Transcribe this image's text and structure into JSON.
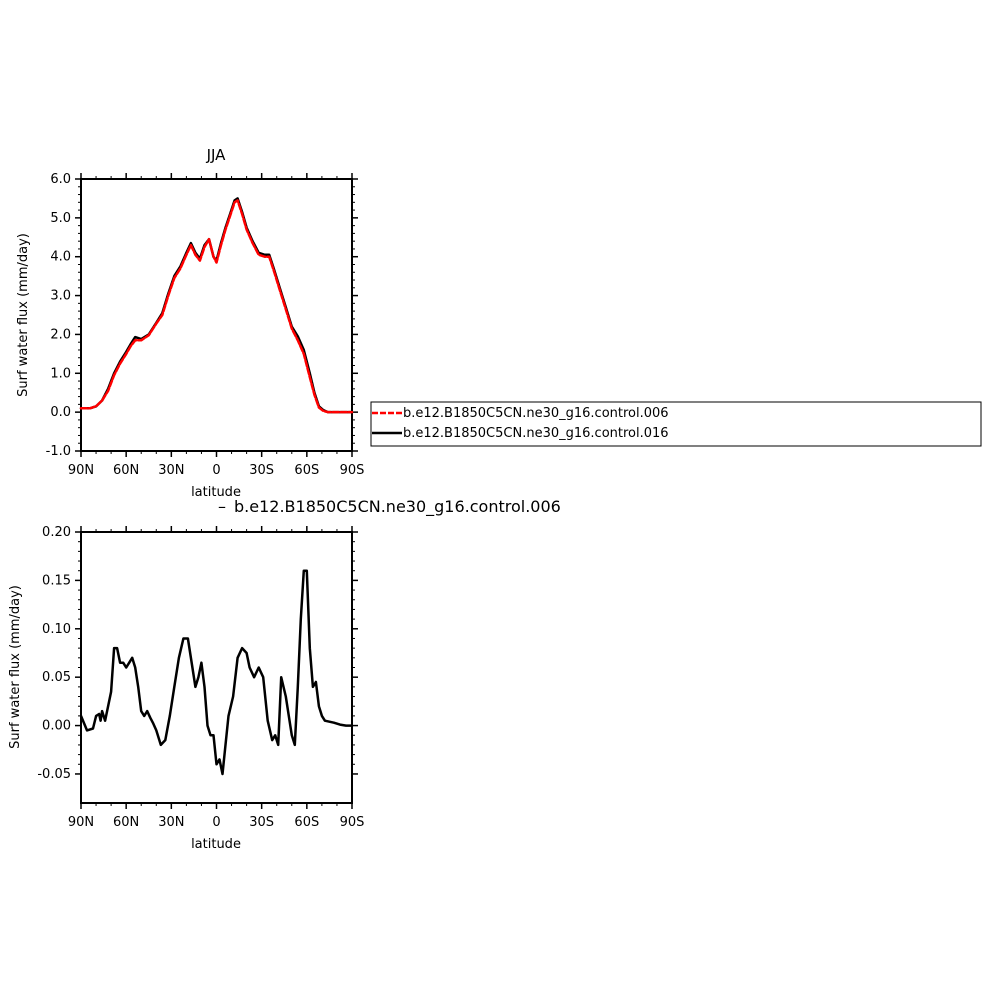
{
  "chart_data": [
    {
      "type": "line",
      "title": "JJA",
      "xlabel": "latitude",
      "ylabel": "Surf water flux (mm/day)",
      "xlim": [
        90,
        -90
      ],
      "ylim": [
        -1.0,
        6.0
      ],
      "x_tick_values": [
        90,
        60,
        30,
        0,
        -30,
        -60,
        -90
      ],
      "x_tick_labels": [
        "90N",
        "60N",
        "30N",
        "0",
        "30S",
        "60S",
        "90S"
      ],
      "y_tick_values": [
        -1,
        0,
        1,
        2,
        3,
        4,
        5,
        6
      ],
      "y_tick_labels": [
        "-1.0",
        "0.0",
        "1.0",
        "2.0",
        "3.0",
        "4.0",
        "5.0",
        "6.0"
      ],
      "grid": false,
      "legend_placement": "right",
      "colors": {
        "run006": "#ff0000",
        "run016": "#000000"
      },
      "series": [
        {
          "name": "b.e12.B1850C5CN.ne30_g16.control.016",
          "x": [
            90,
            84,
            80,
            76,
            72,
            68,
            64,
            60,
            57,
            54,
            50,
            45,
            40,
            36,
            32,
            28,
            24,
            20,
            17,
            14,
            11,
            8,
            5,
            2,
            0,
            -3,
            -6,
            -9,
            -12,
            -14,
            -17,
            -20,
            -24,
            -28,
            -32,
            -35,
            -38,
            -42,
            -46,
            -50,
            -54,
            -58,
            -62,
            -65,
            -68,
            -71,
            -74,
            -80,
            -85,
            -90
          ],
          "y": [
            0.1,
            0.1,
            0.15,
            0.3,
            0.6,
            1.0,
            1.3,
            1.55,
            1.75,
            1.93,
            1.88,
            2.0,
            2.3,
            2.55,
            3.05,
            3.5,
            3.75,
            4.1,
            4.35,
            4.1,
            3.95,
            4.3,
            4.45,
            4.0,
            3.9,
            4.35,
            4.75,
            5.1,
            5.45,
            5.5,
            5.15,
            4.75,
            4.4,
            4.1,
            4.05,
            4.05,
            3.7,
            3.2,
            2.7,
            2.2,
            1.95,
            1.6,
            1.0,
            0.5,
            0.15,
            0.05,
            0.0,
            0.0,
            0.0,
            0.0
          ]
        },
        {
          "name": "b.e12.B1850C5CN.ne30_g16.control.006",
          "x": [
            90,
            84,
            80,
            76,
            72,
            68,
            64,
            60,
            57,
            54,
            50,
            45,
            40,
            36,
            32,
            28,
            24,
            20,
            17,
            14,
            11,
            8,
            5,
            2,
            0,
            -3,
            -6,
            -9,
            -12,
            -14,
            -17,
            -20,
            -24,
            -28,
            -32,
            -35,
            -38,
            -42,
            -46,
            -50,
            -54,
            -58,
            -62,
            -65,
            -68,
            -71,
            -74,
            -80,
            -85,
            -90
          ],
          "y": [
            0.1,
            0.1,
            0.15,
            0.3,
            0.55,
            0.95,
            1.25,
            1.5,
            1.7,
            1.85,
            1.85,
            1.98,
            2.28,
            2.5,
            3.0,
            3.45,
            3.7,
            4.05,
            4.3,
            4.05,
            3.9,
            4.25,
            4.45,
            4.0,
            3.85,
            4.3,
            4.7,
            5.05,
            5.4,
            5.45,
            5.1,
            4.7,
            4.35,
            4.05,
            4.0,
            4.0,
            3.65,
            3.15,
            2.65,
            2.15,
            1.85,
            1.5,
            0.9,
            0.45,
            0.12,
            0.03,
            0.0,
            0.0,
            0.0,
            0.0
          ]
        }
      ]
    },
    {
      "type": "line",
      "title": "",
      "subtitle": "b.e12.B1850C5CN.ne30_g16.control.006",
      "xlabel": "latitude",
      "ylabel": "Surf water flux (mm/day)",
      "xlim": [
        90,
        -90
      ],
      "ylim": [
        -0.08,
        0.2
      ],
      "x_tick_values": [
        90,
        60,
        30,
        0,
        -30,
        -60,
        -90
      ],
      "x_tick_labels": [
        "90N",
        "60N",
        "30N",
        "0",
        "30S",
        "60S",
        "90S"
      ],
      "y_tick_values": [
        -0.05,
        0.0,
        0.05,
        0.1,
        0.15,
        0.2
      ],
      "y_tick_labels": [
        "-0.05",
        "0.00",
        "0.05",
        "0.10",
        "0.15",
        "0.20"
      ],
      "grid": false,
      "colors": {
        "line": "#000000"
      },
      "series": [
        {
          "name": "",
          "x": [
            90,
            86,
            82,
            80,
            78,
            77,
            76,
            74,
            72,
            70,
            68,
            66,
            64,
            62,
            60,
            58,
            56,
            54,
            52,
            50,
            48,
            46,
            44,
            42,
            40,
            37,
            34,
            31,
            28,
            25,
            22,
            19,
            16,
            14,
            12,
            10,
            8,
            6,
            4,
            2,
            0,
            -2,
            -4,
            -6,
            -8,
            -11,
            -14,
            -17,
            -20,
            -22,
            -25,
            -28,
            -31,
            -34,
            -37,
            -39,
            -41,
            -43,
            -46,
            -48,
            -50,
            -52,
            -54,
            -56,
            -58,
            -60,
            -62,
            -64,
            -66,
            -68,
            -70,
            -72,
            -75,
            -78,
            -82,
            -86,
            -90
          ],
          "y": [
            0.01,
            -0.005,
            -0.003,
            0.01,
            0.012,
            0.005,
            0.015,
            0.005,
            0.02,
            0.035,
            0.08,
            0.08,
            0.065,
            0.065,
            0.06,
            0.065,
            0.07,
            0.06,
            0.04,
            0.015,
            0.01,
            0.015,
            0.008,
            0.002,
            -0.005,
            -0.02,
            -0.015,
            0.01,
            0.04,
            0.07,
            0.09,
            0.09,
            0.06,
            0.04,
            0.05,
            0.065,
            0.04,
            0.0,
            -0.01,
            -0.01,
            -0.04,
            -0.035,
            -0.05,
            -0.02,
            0.01,
            0.03,
            0.07,
            0.08,
            0.075,
            0.06,
            0.05,
            0.06,
            0.05,
            0.005,
            -0.015,
            -0.01,
            -0.02,
            0.05,
            0.03,
            0.01,
            -0.01,
            -0.02,
            0.04,
            0.11,
            0.16,
            0.16,
            0.08,
            0.04,
            0.045,
            0.02,
            0.01,
            0.005,
            0.004,
            0.003,
            0.001,
            0.0,
            0.0
          ]
        }
      ]
    }
  ]
}
